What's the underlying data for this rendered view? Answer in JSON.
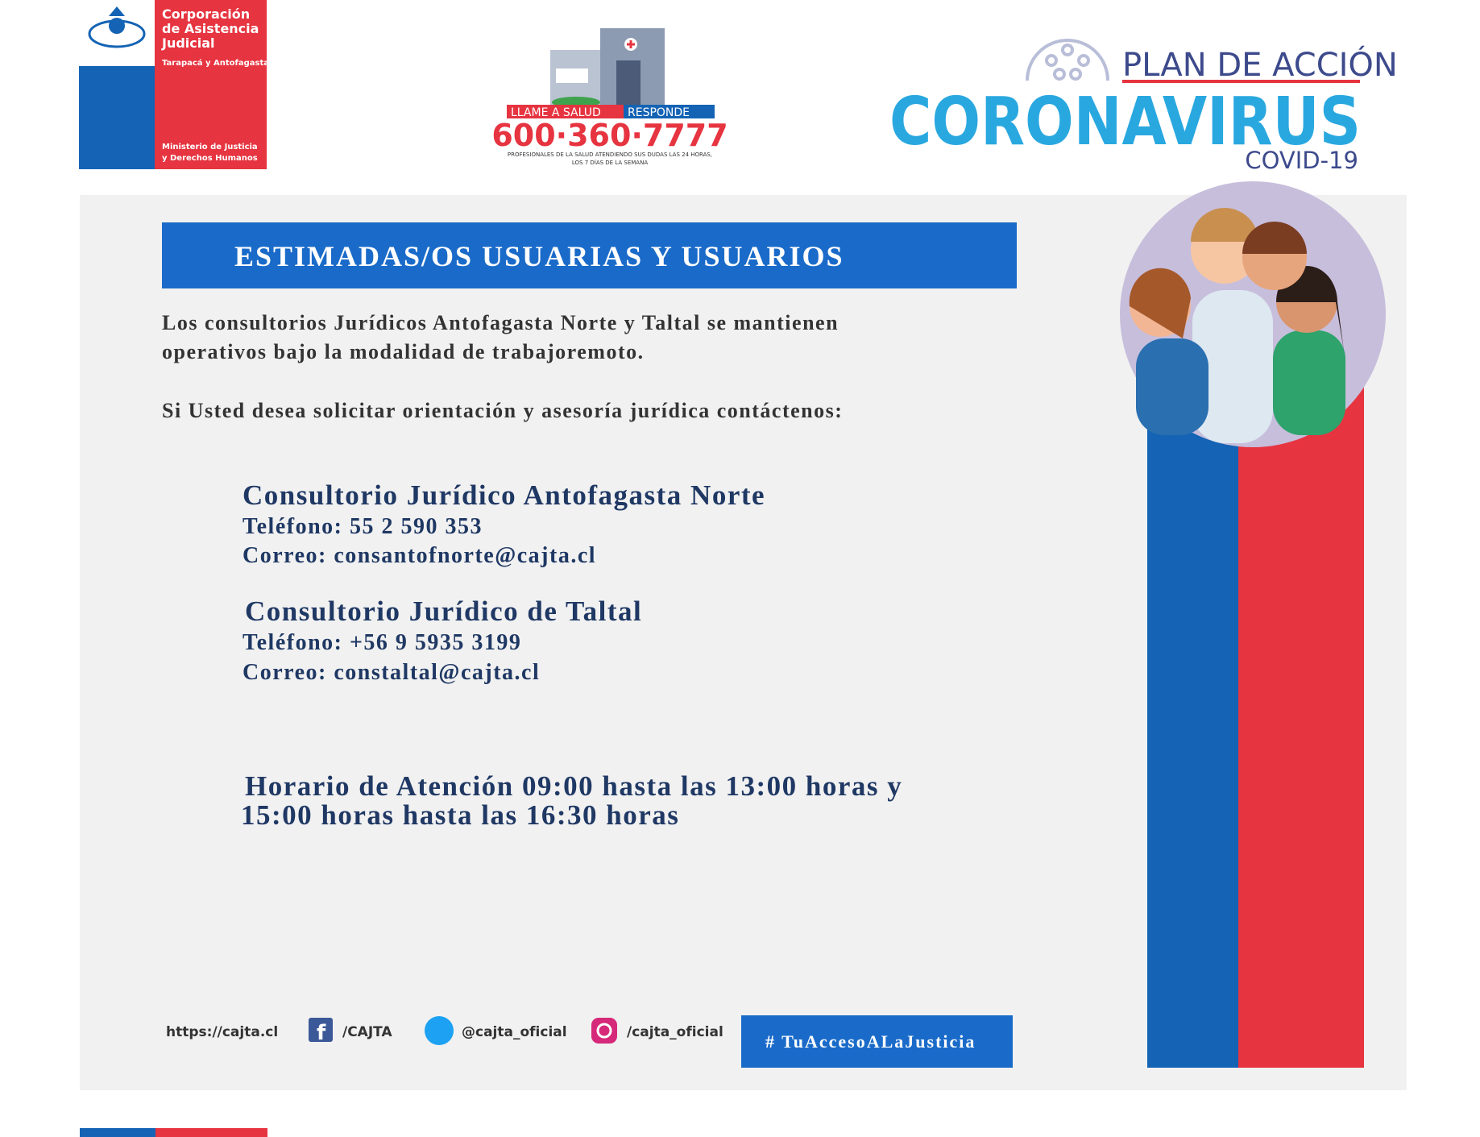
{
  "logo": {
    "lines": [
      "Corporación",
      "de Asistencia",
      "Judicial"
    ],
    "region": "Tarapacá y Antofagasta",
    "ministry": [
      "Ministerio de Justicia",
      "y Derechos Humanos"
    ]
  },
  "hotline": {
    "label_left": "LLAME A SALUD",
    "label_right": "RESPONDE",
    "number": "600·360·7777",
    "note": [
      "PROFESIONALES DE LA SALUD ATENDIENDO SUS DUDAS LAS 24 HORAS,",
      "LOS 7 DÍAS DE LA SEMANA"
    ]
  },
  "campaign": {
    "kicker": "PLAN DE ACCIÓN",
    "title": "CORONAVIRUS",
    "subtitle": "COVID-19"
  },
  "notice": {
    "title": "ESTIMADAS/OS  USUARIAS Y USUARIOS",
    "paragraphs": [
      "Los consultorios Jurídicos Antofagasta Norte y Taltal  se mantienen",
      "operativos bajo la modalidad de trabajoremoto.",
      "Si Usted desea solicitar orientación y asesoría jurídica contáctenos:"
    ],
    "offices": [
      {
        "name": "Consultorio Jurídico Antofagasta Norte",
        "phone": "Teléfono: 55 2 590 353",
        "email": "Correo: consantofnorte@cajta.cl"
      },
      {
        "name": "Consultorio Jurídico de Taltal",
        "phone": "Teléfono: +56 9 5935 3199",
        "email": "Correo: constaltal@cajta.cl"
      }
    ],
    "hours": [
      "Horario de Atención 09:00 hasta las 13:00 horas y",
      "15:00 horas hasta las 16:30 horas"
    ]
  },
  "footer": {
    "website": "https://cajta.cl",
    "facebook": "/CAJTA",
    "twitter": "@cajta_oficial",
    "instagram": "/cajta_oficial",
    "hashtag": "# TuAccesoALaJusticia"
  }
}
